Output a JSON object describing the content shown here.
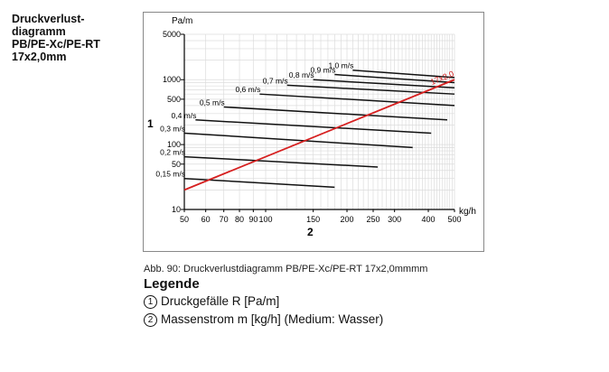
{
  "sidebar": {
    "title_lines": [
      "Druckverlust-",
      "diagramm",
      "PB/PE-Xc/PE-RT",
      "17x2,0mm"
    ]
  },
  "caption": "Abb. 90: Druckverlustdiagramm PB/PE-Xc/PE-RT 17x2,0mmmm",
  "legend": {
    "title": "Legende",
    "items": [
      {
        "marker": "1",
        "text": "Druckgefälle R [Pa/m]"
      },
      {
        "marker": "2",
        "text": "Massenstrom m [kg/h] (Medium: Wasser)"
      }
    ]
  },
  "colors": {
    "pipe_line": "#d62020",
    "grid": "#dcdcdc",
    "velocity_line": "#111111"
  },
  "chart_data": {
    "type": "line",
    "title": "",
    "xlabel": "kg/h",
    "ylabel": "Pa/m",
    "x_axis_marker": "2",
    "y_axis_marker": "1",
    "xscale": "log",
    "yscale": "log",
    "xlim": [
      50,
      500
    ],
    "ylim": [
      10,
      5000
    ],
    "x_ticks": [
      50,
      60,
      70,
      80,
      90,
      100,
      150,
      200,
      250,
      300,
      400,
      500
    ],
    "x_tick_labels": [
      "50",
      "60",
      "70",
      "80",
      "90",
      "100",
      "150",
      "200",
      "250",
      "300",
      "400",
      "500"
    ],
    "y_ticks": [
      10,
      50,
      100,
      500,
      1000,
      5000
    ],
    "y_tick_labels": [
      "10",
      "50",
      "100",
      "500",
      "1000",
      "5000"
    ],
    "pipe_series": {
      "name": "17x2,0",
      "x": [
        50,
        500
      ],
      "y": [
        20,
        1000
      ]
    },
    "velocity_series": [
      {
        "name": "0,15 m/s",
        "x": [
          50,
          180
        ],
        "y": [
          30,
          22
        ]
      },
      {
        "name": "0,2 m/s",
        "x": [
          50,
          260
        ],
        "y": [
          65,
          45
        ]
      },
      {
        "name": "0,3 m/s",
        "x": [
          50,
          350
        ],
        "y": [
          150,
          90
        ]
      },
      {
        "name": "0,4 m/s",
        "x": [
          55,
          410
        ],
        "y": [
          240,
          150
        ]
      },
      {
        "name": "0,5 m/s",
        "x": [
          70,
          470
        ],
        "y": [
          380,
          240
        ]
      },
      {
        "name": "0,6 m/s",
        "x": [
          95,
          500
        ],
        "y": [
          600,
          400
        ]
      },
      {
        "name": "0,7 m/s",
        "x": [
          120,
          500
        ],
        "y": [
          820,
          600
        ]
      },
      {
        "name": "0,8 m/s",
        "x": [
          150,
          500
        ],
        "y": [
          1000,
          750
        ]
      },
      {
        "name": "0,9 m/s",
        "x": [
          180,
          500
        ],
        "y": [
          1200,
          900
        ]
      },
      {
        "name": "1,0 m/s",
        "x": [
          210,
          500
        ],
        "y": [
          1400,
          1080
        ]
      }
    ]
  }
}
